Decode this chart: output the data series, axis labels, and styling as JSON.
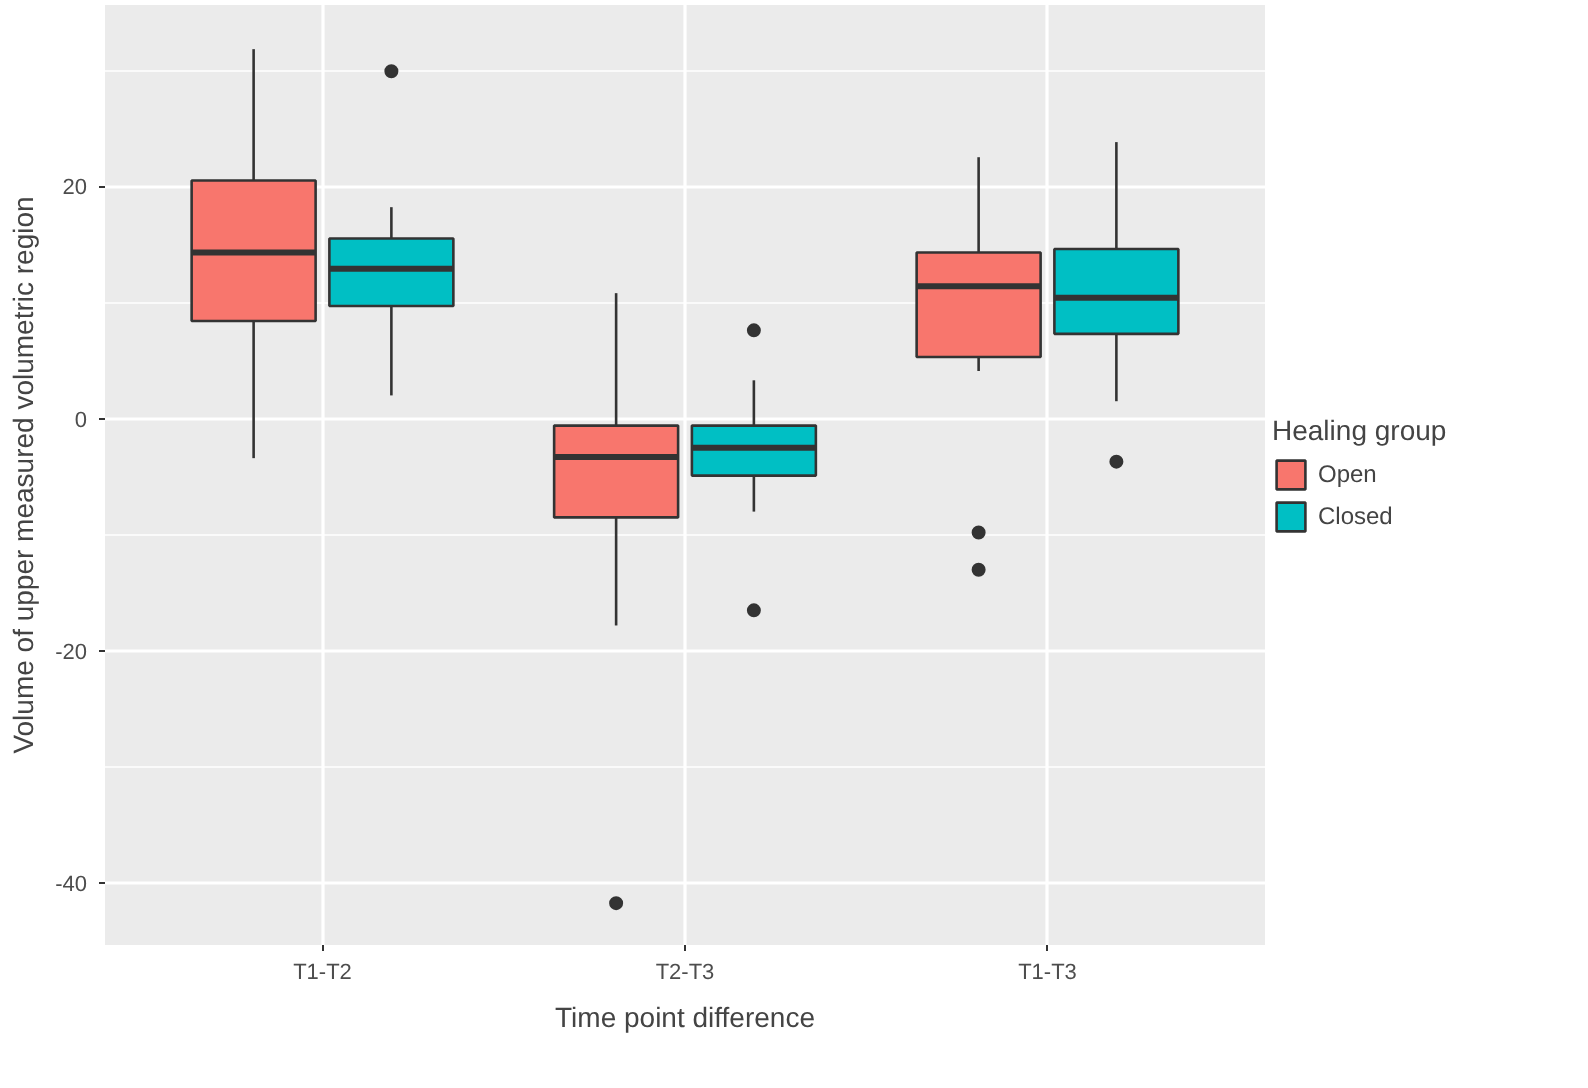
{
  "chart_data": {
    "type": "box",
    "xlabel": "Time point difference",
    "ylabel": "Volume of upper measured volumetric region",
    "legend_title": "Healing group",
    "categories": [
      "T1-T2",
      "T2-T3",
      "T1-T3"
    ],
    "ylim": [
      -45.3,
      35.6
    ],
    "yticks": [
      {
        "value": -40,
        "label": "-40"
      },
      {
        "value": -30,
        "label": null
      },
      {
        "value": -20,
        "label": "-20"
      },
      {
        "value": -10,
        "label": null
      },
      {
        "value": 0,
        "label": "0"
      },
      {
        "value": 10,
        "label": null
      },
      {
        "value": 20,
        "label": "20"
      },
      {
        "value": 30,
        "label": null
      }
    ],
    "grid": true,
    "legend": "right",
    "marker": "circle",
    "series": [
      {
        "name": "Open",
        "color": "#f8766d",
        "boxes": [
          {
            "low": -3.4,
            "q1": 8.4,
            "median": 14.3,
            "q3": 20.5,
            "high": 31.8
          },
          {
            "low": -17.8,
            "q1": -8.5,
            "median": -3.3,
            "q3": -0.6,
            "high": 10.8,
            "outliers": [
              -41.7
            ]
          },
          {
            "low": 4.1,
            "q1": 5.3,
            "median": 11.4,
            "q3": 14.3,
            "high": 22.5,
            "outliers": [
              -9.8,
              -13.0
            ]
          }
        ]
      },
      {
        "name": "Closed",
        "color": "#00bfc4",
        "boxes": [
          {
            "low": 2.0,
            "q1": 9.7,
            "median": 12.9,
            "q3": 15.5,
            "high": 18.2,
            "outliers": [
              29.9
            ]
          },
          {
            "low": -8.0,
            "q1": -4.9,
            "median": -2.5,
            "q3": -0.6,
            "high": 3.3,
            "outliers": [
              7.6,
              -16.5
            ]
          },
          {
            "low": 1.5,
            "q1": 7.3,
            "median": 10.4,
            "q3": 14.6,
            "high": 23.8,
            "outliers": [
              -3.7
            ]
          }
        ]
      }
    ]
  }
}
